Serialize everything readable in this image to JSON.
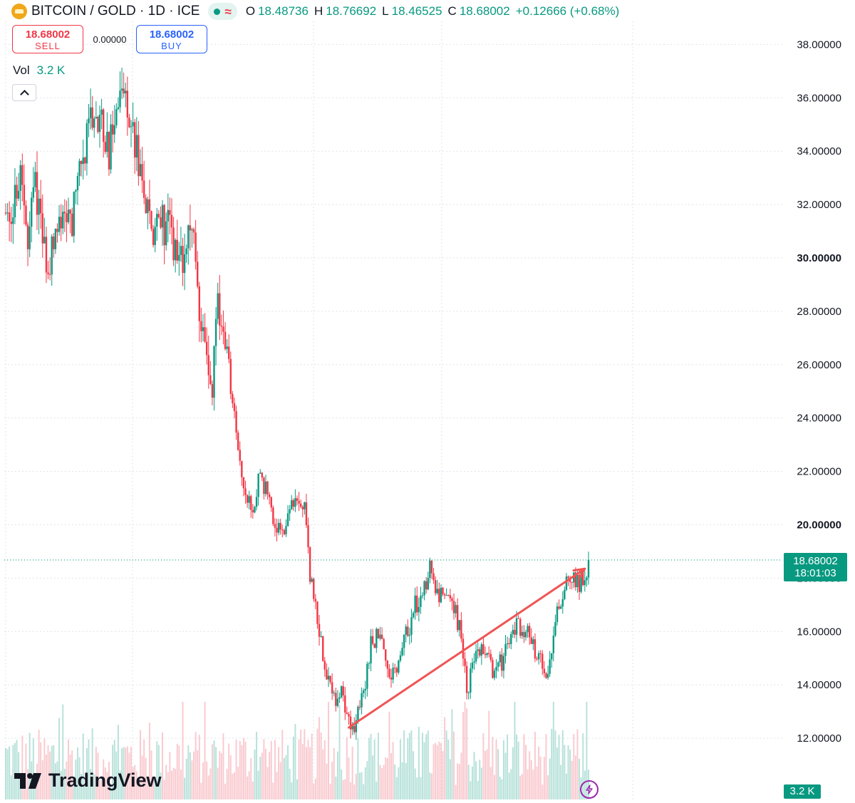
{
  "header": {
    "title": "BITCOIN / GOLD · 1D · ICE",
    "status_wave": "≈",
    "ohlc": {
      "o_label": "O",
      "o": "18.48736",
      "h_label": "H",
      "h": "18.76692",
      "l_label": "L",
      "l": "18.46525",
      "c_label": "C",
      "c": "18.68002",
      "change": "+0.12666 (+0.68%)"
    }
  },
  "trade": {
    "sell_price": "18.68002",
    "sell_label": "SELL",
    "spread": "0.00000",
    "buy_price": "18.68002",
    "buy_label": "BUY"
  },
  "volume": {
    "label": "Vol",
    "value": "3.2 K",
    "axis_label": "3.2 K"
  },
  "last_price": {
    "price": "18.68002",
    "countdown": "18:01:03"
  },
  "branding": {
    "name": "TradingView"
  },
  "colors": {
    "up": "#089981",
    "down": "#f23645",
    "arrow": "#f05454",
    "grid": "#e0e3eb"
  },
  "chart_data": {
    "type": "candlestick",
    "symbol": "BITCOIN / GOLD",
    "interval": "1D",
    "y_ticks": [
      {
        "value": 12,
        "label": "12.00000",
        "bold": false
      },
      {
        "value": 14,
        "label": "14.00000",
        "bold": false
      },
      {
        "value": 16,
        "label": "16.00000",
        "bold": false
      },
      {
        "value": 18,
        "label": "18.00000",
        "bold": false
      },
      {
        "value": 20,
        "label": "20.00000",
        "bold": true
      },
      {
        "value": 22,
        "label": "22.00000",
        "bold": false
      },
      {
        "value": 24,
        "label": "24.00000",
        "bold": false
      },
      {
        "value": 26,
        "label": "26.00000",
        "bold": false
      },
      {
        "value": 28,
        "label": "28.00000",
        "bold": false
      },
      {
        "value": 30,
        "label": "30.00000",
        "bold": true
      },
      {
        "value": 32,
        "label": "32.00000",
        "bold": false
      },
      {
        "value": 34,
        "label": "34.00000",
        "bold": false
      },
      {
        "value": 36,
        "label": "36.00000",
        "bold": false
      },
      {
        "value": 38,
        "label": "38.00000",
        "bold": false
      }
    ],
    "ylim": [
      10,
      39
    ],
    "grid": true,
    "last_close": 18.68002,
    "price_path": [
      [
        0,
        31.5
      ],
      [
        8,
        32.8
      ],
      [
        12,
        31
      ],
      [
        16,
        33
      ],
      [
        20,
        30.5
      ],
      [
        24,
        30
      ],
      [
        28,
        31
      ],
      [
        32,
        32
      ],
      [
        36,
        31.5
      ],
      [
        40,
        33
      ],
      [
        44,
        34.5
      ],
      [
        48,
        36
      ],
      [
        52,
        35
      ],
      [
        56,
        34
      ],
      [
        60,
        35.5
      ],
      [
        64,
        36.5
      ],
      [
        68,
        35
      ],
      [
        72,
        33.5
      ],
      [
        76,
        32
      ],
      [
        80,
        31
      ],
      [
        84,
        31.5
      ],
      [
        88,
        31
      ],
      [
        92,
        30.5
      ],
      [
        96,
        29.5
      ],
      [
        100,
        31.5
      ],
      [
        104,
        29
      ],
      [
        108,
        26.5
      ],
      [
        112,
        25
      ],
      [
        114,
        28.5
      ],
      [
        118,
        27
      ],
      [
        122,
        25
      ],
      [
        126,
        23
      ],
      [
        130,
        21
      ],
      [
        134,
        20.5
      ],
      [
        138,
        22
      ],
      [
        142,
        21
      ],
      [
        146,
        20
      ],
      [
        150,
        19.5
      ],
      [
        154,
        20.5
      ],
      [
        158,
        21
      ],
      [
        162,
        20.5
      ],
      [
        165,
        18
      ],
      [
        170,
        16
      ],
      [
        174,
        14.5
      ],
      [
        178,
        13.5
      ],
      [
        182,
        13.8
      ],
      [
        186,
        12.8
      ],
      [
        190,
        12.5
      ],
      [
        194,
        13.8
      ],
      [
        198,
        15.5
      ],
      [
        202,
        16
      ],
      [
        206,
        14.8
      ],
      [
        210,
        14.5
      ],
      [
        214,
        15.2
      ],
      [
        218,
        16
      ],
      [
        222,
        17
      ],
      [
        226,
        17.2
      ],
      [
        230,
        18.5
      ],
      [
        234,
        17.5
      ],
      [
        238,
        17
      ],
      [
        242,
        17.2
      ],
      [
        246,
        16.2
      ],
      [
        250,
        13.8
      ],
      [
        254,
        15
      ],
      [
        258,
        15.2
      ],
      [
        262,
        14.8
      ],
      [
        266,
        14.5
      ],
      [
        270,
        15
      ],
      [
        274,
        15.8
      ],
      [
        278,
        16.3
      ],
      [
        282,
        16
      ],
      [
        286,
        15.5
      ],
      [
        290,
        14.8
      ],
      [
        294,
        14.5
      ],
      [
        298,
        16.5
      ],
      [
        302,
        17.5
      ],
      [
        306,
        18
      ],
      [
        310,
        17.8
      ],
      [
        314,
        18.1
      ],
      [
        316,
        18.68
      ]
    ],
    "volume_ylim": [
      0,
      12000
    ],
    "annotations": [
      {
        "type": "arrow",
        "from": {
          "bar": 186,
          "price": 12.4
        },
        "to": {
          "bar": 314,
          "price": 18.35
        }
      }
    ]
  }
}
